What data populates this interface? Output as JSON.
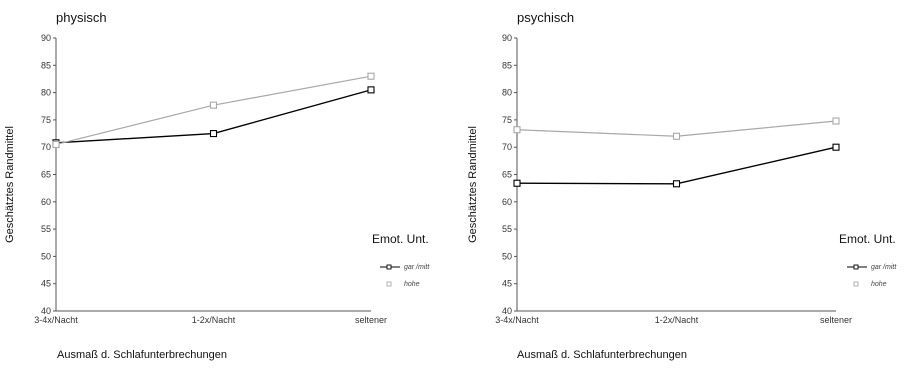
{
  "chart_data": [
    {
      "type": "line",
      "title": "physisch",
      "xlabel": "Ausmaß d. Schlafunterbrechungen",
      "ylabel": "Geschätztes Randmittel",
      "categories": [
        "3-4x/Nacht",
        "1-2x/Nacht",
        "seltener"
      ],
      "ylim": [
        40,
        90
      ],
      "yticks": [
        "40",
        "45",
        "50",
        "55",
        "60",
        "65",
        "70",
        "75",
        "80",
        "85",
        "90"
      ],
      "legend_title": "Emot. Unt.",
      "legend_position": "right",
      "grid": false,
      "series": [
        {
          "name": "gar /mitt",
          "values": [
            70.8,
            72.5,
            80.5
          ],
          "color": "#000000"
        },
        {
          "name": "hohe",
          "values": [
            70.5,
            77.7,
            83.0
          ],
          "color": "#a8a8a8"
        }
      ]
    },
    {
      "type": "line",
      "title": "psychisch",
      "xlabel": "Ausmaß d. Schlafunterbrechungen",
      "ylabel": "Geschätztes Randmittel",
      "categories": [
        "3-4x/Nacht",
        "1-2x/Nacht",
        "seltener"
      ],
      "ylim": [
        40,
        90
      ],
      "yticks": [
        "40",
        "45",
        "50",
        "55",
        "60",
        "65",
        "70",
        "75",
        "80",
        "85",
        "90"
      ],
      "legend_title": "Emot. Unt.",
      "legend_position": "right",
      "grid": false,
      "series": [
        {
          "name": "gar /mitt",
          "values": [
            63.4,
            63.3,
            70.0
          ],
          "color": "#000000"
        },
        {
          "name": "hohe",
          "values": [
            73.2,
            72.0,
            74.8
          ],
          "color": "#a8a8a8"
        }
      ]
    }
  ]
}
